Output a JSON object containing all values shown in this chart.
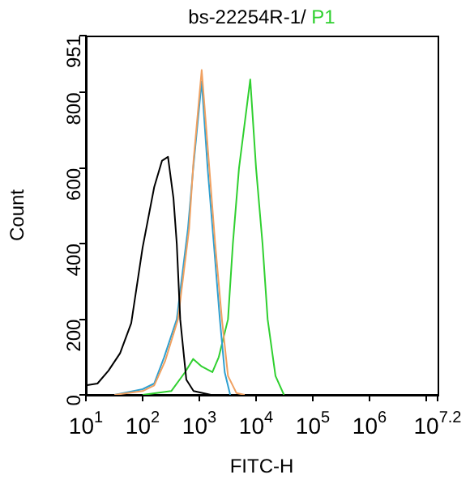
{
  "chart_data": {
    "type": "line",
    "title": "bs-22254R-1/",
    "xlabel": "FITC-H",
    "ylabel": "Count",
    "log": "x",
    "xlim": [
      10,
      15848932
    ],
    "xticks": [
      {
        "value": 10,
        "label": "10$^{1}$"
      },
      {
        "value": 100,
        "label": "10$^{2}$"
      },
      {
        "value": 1000,
        "label": "10$^{3}$"
      },
      {
        "value": 10000,
        "label": "10$^{4}$"
      },
      {
        "value": 100000,
        "label": "10$^{5}$"
      },
      {
        "value": 1000000,
        "label": "10$^{6}$"
      },
      {
        "value": 10000000,
        "label": null
      },
      {
        "value": 15848932,
        "label": "10$^{7.2}$"
      }
    ],
    "ylim": [
      0,
      951
    ],
    "yticks": [
      0,
      200,
      400,
      600,
      800,
      951
    ],
    "grid": false,
    "legend": false,
    "marker": "none",
    "line_style": "solid",
    "series": [
      {
        "color": "#000000",
        "x": [
          10,
          16,
          25,
          40,
          63,
          100,
          160,
          220,
          280,
          350,
          400,
          460,
          590,
          790,
          1600
        ],
        "values": [
          25,
          30,
          64,
          110,
          190,
          390,
          550,
          620,
          630,
          520,
          400,
          200,
          40,
          10,
          0
        ]
      },
      {
        "color": "#f0a060",
        "x": [
          32,
          100,
          160,
          250,
          420,
          660,
          790,
          1100,
          1500,
          1900,
          2500,
          3200,
          4500,
          6300
        ],
        "values": [
          0,
          10,
          25,
          90,
          200,
          440,
          620,
          860,
          600,
          400,
          200,
          50,
          5,
          0
        ]
      },
      {
        "color": "#30a0d0",
        "x": [
          32,
          100,
          160,
          240,
          400,
          630,
          780,
          1100,
          1400,
          1800,
          2300,
          2800,
          3500
        ],
        "values": [
          0,
          15,
          30,
          100,
          200,
          440,
          600,
          830,
          600,
          400,
          200,
          60,
          0
        ]
      },
      {
        "name": "P1",
        "color": "#30d030",
        "x": [
          100,
          320,
          560,
          780,
          1100,
          1700,
          2200,
          3200,
          3900,
          5000,
          7900,
          10000,
          13000,
          16000,
          22000,
          31000
        ],
        "values": [
          0,
          10,
          60,
          95,
          75,
          60,
          100,
          200,
          400,
          600,
          835,
          600,
          400,
          200,
          50,
          0
        ]
      }
    ]
  }
}
